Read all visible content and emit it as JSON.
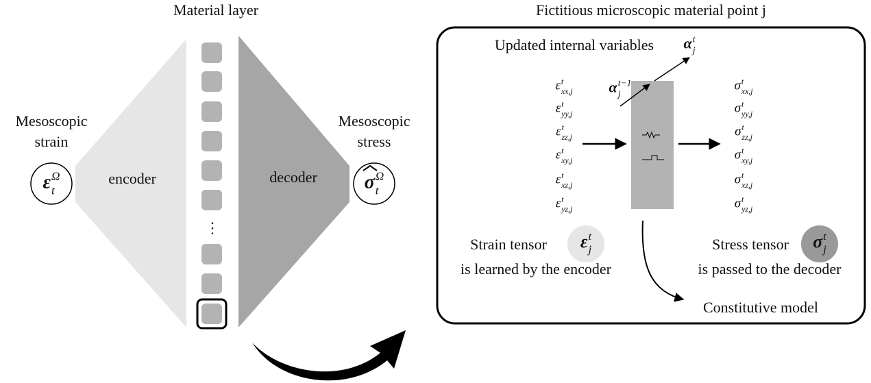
{
  "left": {
    "title": "Material layer",
    "input_label": [
      "Mesoscopic",
      "strain"
    ],
    "output_label": [
      "Mesoscopic",
      "stress"
    ],
    "encoder": "encoder",
    "decoder": "decoder",
    "ellipsis": "⋮",
    "strain_symbol": {
      "base": "ε",
      "sup": "Ω",
      "sub": "t"
    },
    "stress_symbol": {
      "base": "σ",
      "sup": "Ω",
      "sub": "t"
    }
  },
  "right": {
    "title": "Fictitious microscopic material point j",
    "updated_label": "Updated internal variables",
    "alpha_new": {
      "base": "α",
      "sup": "t",
      "sub": "j"
    },
    "alpha_old": {
      "base": "α",
      "sup": "t−1",
      "sub": "j"
    },
    "strain_components": [
      {
        "base": "ε",
        "sup": "t",
        "sub": "xx,j"
      },
      {
        "base": "ε",
        "sup": "t",
        "sub": "yy,j"
      },
      {
        "base": "ε",
        "sup": "t",
        "sub": "zz,j"
      },
      {
        "base": "ε",
        "sup": "t",
        "sub": "xy,j"
      },
      {
        "base": "ε",
        "sup": "t",
        "sub": "xz,j"
      },
      {
        "base": "ε",
        "sup": "t",
        "sub": "yz,j"
      }
    ],
    "stress_components": [
      {
        "base": "σ",
        "sup": "t",
        "sub": "xx,j"
      },
      {
        "base": "σ",
        "sup": "t",
        "sub": "yy,j"
      },
      {
        "base": "σ",
        "sup": "t",
        "sub": "zz,j"
      },
      {
        "base": "σ",
        "sup": "t",
        "sub": "xy,j"
      },
      {
        "base": "σ",
        "sup": "t",
        "sub": "xz,j"
      },
      {
        "base": "σ",
        "sup": "t",
        "sub": "yz,j"
      }
    ],
    "strain_tensor": {
      "label": "Strain tensor",
      "note": "is learned by the encoder",
      "symbol": {
        "base": "ε",
        "sup": "t",
        "sub": "j"
      }
    },
    "stress_tensor": {
      "label": "Stress tensor",
      "note": "is passed to the decoder",
      "symbol": {
        "base": "σ",
        "sup": "t",
        "sub": "j"
      }
    },
    "model_label": "Constitutive model"
  }
}
